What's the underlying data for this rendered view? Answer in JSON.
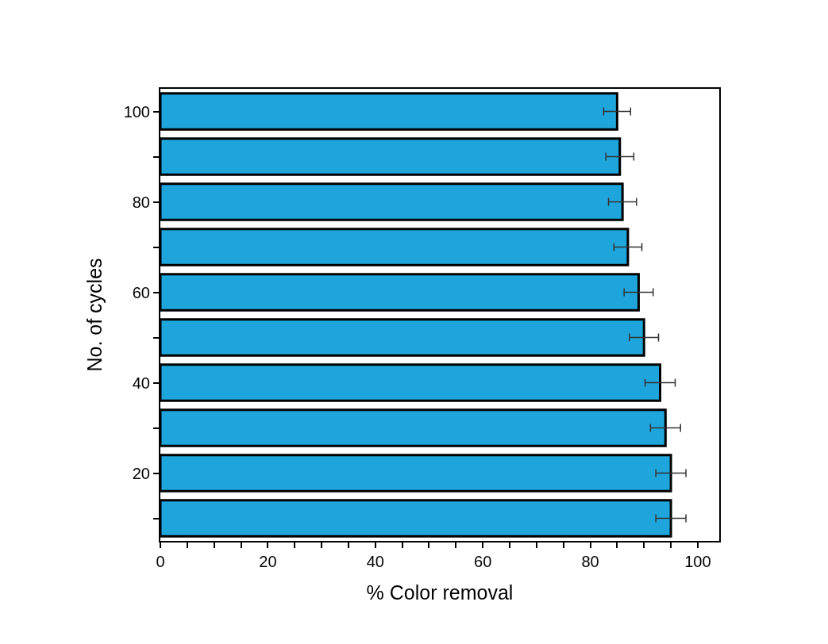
{
  "chart_data": {
    "type": "bar",
    "orientation": "horizontal",
    "xlabel": "% Color removal",
    "ylabel": "No. of cycles",
    "x": [
      10,
      20,
      30,
      40,
      50,
      60,
      70,
      80,
      90,
      100
    ],
    "values": [
      95,
      95,
      94,
      93,
      90,
      89,
      87,
      86,
      85.5,
      85
    ],
    "errors": [
      2.8,
      2.8,
      2.8,
      2.8,
      2.7,
      2.7,
      2.6,
      2.6,
      2.6,
      2.5
    ],
    "color": "#1ea6dc",
    "xlim": [
      0,
      104
    ],
    "xticks": [
      0,
      {
        "value": 5,
        "label": null
      },
      {
        "value": 10,
        "label": null
      },
      {
        "value": 15,
        "label": null
      },
      20,
      {
        "value": 25,
        "label": null
      },
      {
        "value": 30,
        "label": null
      },
      {
        "value": 35,
        "label": null
      },
      40,
      {
        "value": 45,
        "label": null
      },
      {
        "value": 50,
        "label": null
      },
      {
        "value": 55,
        "label": null
      },
      60,
      {
        "value": 65,
        "label": null
      },
      {
        "value": 70,
        "label": null
      },
      {
        "value": 75,
        "label": null
      },
      80,
      {
        "value": 85,
        "label": null
      },
      {
        "value": 90,
        "label": null
      },
      {
        "value": 95,
        "label": null
      },
      100
    ],
    "ylim": [
      5,
      105
    ],
    "yticks": [
      {
        "value": 10,
        "label": null
      },
      20,
      {
        "value": 30,
        "label": null
      },
      40,
      {
        "value": 50,
        "label": null
      },
      60,
      {
        "value": 70,
        "label": null
      },
      80,
      {
        "value": 90,
        "label": null
      },
      100
    ],
    "grid": false,
    "legend": false
  }
}
